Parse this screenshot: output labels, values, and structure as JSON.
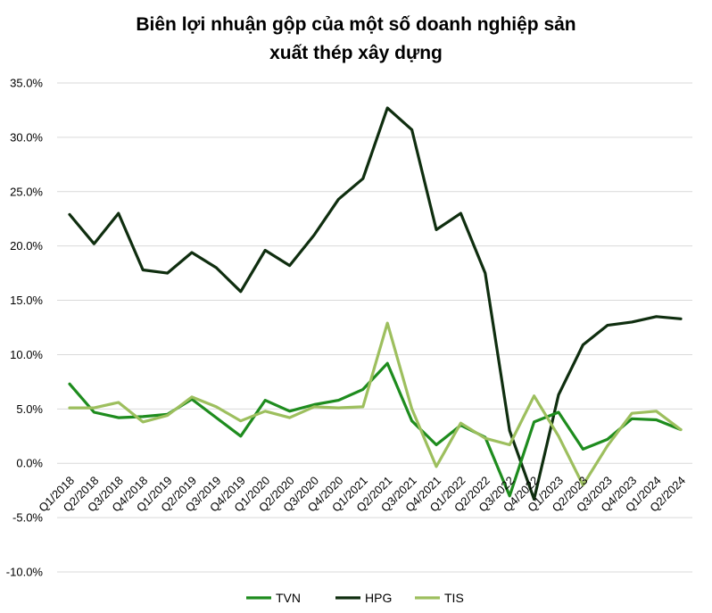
{
  "chart_data": {
    "type": "line",
    "title": "Biên lợi nhuận gộp của một số doanh nghiệp sản xuất thép xây dựng",
    "title_lines": [
      "Biên lợi nhuận gộp của một số doanh nghiệp sản",
      "xuất thép xây dựng"
    ],
    "xlabel": "",
    "ylabel": "",
    "ylim": [
      -10,
      35
    ],
    "y_ticks": [
      35,
      30,
      25,
      20,
      15,
      10,
      5,
      0,
      -5,
      -10
    ],
    "y_tick_labels": [
      "35.0%",
      "30.0%",
      "25.0%",
      "20.0%",
      "15.0%",
      "10.0%",
      "5.0%",
      "0.0%",
      "-5.0%",
      "-10.0%"
    ],
    "categories": [
      "Q1/2018",
      "Q2/2018",
      "Q3/2018",
      "Q4/2018",
      "Q1/2019",
      "Q2/2019",
      "Q3/2019",
      "Q4/2019",
      "Q1/2020",
      "Q2/2020",
      "Q3/2020",
      "Q4/2020",
      "Q1/2021",
      "Q2/2021",
      "Q3/2021",
      "Q4/2021",
      "Q1/2022",
      "Q2/2022",
      "Q3/2022",
      "Q4/2022",
      "Q1/2023",
      "Q2/2023",
      "Q3/2023",
      "Q4/2023",
      "Q1/2024",
      "Q2/2024"
    ],
    "grid": true,
    "legend_position": "bottom",
    "series": [
      {
        "name": "TVN",
        "color": "#1e8c1e",
        "values": [
          7.3,
          4.7,
          4.2,
          4.3,
          4.5,
          5.9,
          4.2,
          2.5,
          5.8,
          4.8,
          5.4,
          5.8,
          6.8,
          9.2,
          3.9,
          1.7,
          3.5,
          2.4,
          -3.0,
          3.8,
          4.7,
          1.3,
          2.2,
          4.1,
          4.0,
          3.1
        ]
      },
      {
        "name": "HPG",
        "color": "#0f2e0f",
        "values": [
          22.9,
          20.2,
          23.0,
          17.8,
          17.5,
          19.4,
          18.0,
          15.8,
          19.6,
          18.2,
          21.0,
          24.3,
          26.2,
          32.7,
          30.7,
          21.5,
          23.0,
          17.5,
          3.0,
          -3.3,
          6.3,
          10.9,
          12.7,
          13.0,
          13.5,
          13.3
        ]
      },
      {
        "name": "TIS",
        "color": "#9dbf5e",
        "values": [
          5.1,
          5.1,
          5.6,
          3.8,
          4.4,
          6.1,
          5.2,
          3.9,
          4.8,
          4.2,
          5.2,
          5.1,
          5.2,
          12.9,
          5.0,
          -0.3,
          3.7,
          2.3,
          1.7,
          6.2,
          2.5,
          -2.0,
          1.6,
          4.6,
          4.8,
          3.1
        ]
      }
    ]
  }
}
